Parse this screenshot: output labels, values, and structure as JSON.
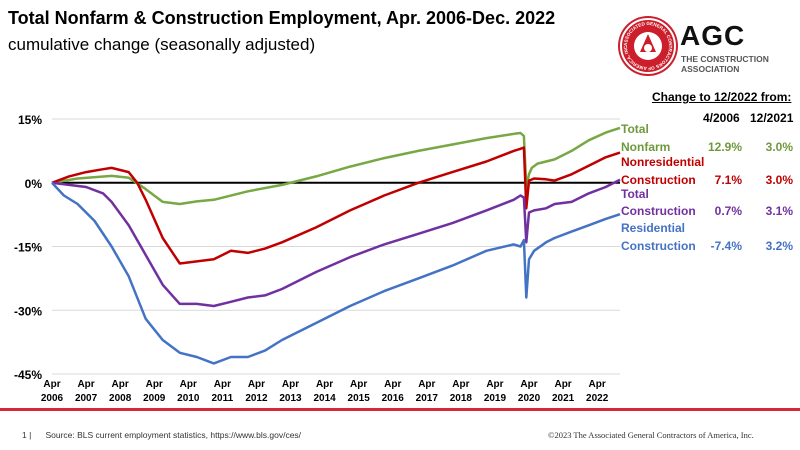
{
  "title": "Total Nonfarm & Construction Employment, Apr. 2006-Dec. 2022",
  "subtitle": "cumulative change (seasonally adjusted)",
  "logo": {
    "name": "AGC",
    "sub1": "THE CONSTRUCTION",
    "sub2": "ASSOCIATION",
    "seal_text": "ASSOCIATED GENERAL CONTRACTORS OF AMERICA, INC."
  },
  "table": {
    "header": "Change to 12/2022 from:",
    "col1": "4/2006",
    "col2": "12/2021",
    "rows": [
      {
        "label1": "Total",
        "label2": "Nonfarm",
        "v1": "12.9%",
        "v2": "3.0%",
        "color": "#6e9a3c"
      },
      {
        "label1": "Nonresidential",
        "label2": "Construction",
        "v1": "7.1%",
        "v2": "3.0%",
        "color": "#c00000"
      },
      {
        "label1": "Total",
        "label2": "Construction",
        "v1": "0.7%",
        "v2": "3.1%",
        "color": "#7030a0"
      },
      {
        "label1": "Residential",
        "label2": "Construction",
        "v1": "-7.4%",
        "v2": "3.2%",
        "color": "#4472c4"
      }
    ]
  },
  "footer": {
    "page": "1 |",
    "source": "Source: BLS current employment statistics, https://www.bls.gov/ces/",
    "copyright": "©2023 The Associated General Contractors of America, Inc."
  },
  "chart_data": {
    "type": "line",
    "ylim": [
      -45,
      15
    ],
    "yticks": [
      15,
      0,
      -15,
      -30,
      -45
    ],
    "ytick_labels": [
      "15%",
      "0%",
      "-15%",
      "-30%",
      "-45%"
    ],
    "xlim": [
      2006.25,
      2022.92
    ],
    "x_ticks": [
      {
        "year": 2006,
        "label": "2006",
        "month": "Apr"
      },
      {
        "year": 2007,
        "label": "2007",
        "month": "Apr"
      },
      {
        "year": 2008,
        "label": "2008",
        "month": "Apr"
      },
      {
        "year": 2009,
        "label": "2009",
        "month": "Apr"
      },
      {
        "year": 2010,
        "label": "2010",
        "month": "Apr"
      },
      {
        "year": 2011,
        "label": "2011",
        "month": "Apr"
      },
      {
        "year": 2012,
        "label": "2012",
        "month": "Apr"
      },
      {
        "year": 2013,
        "label": "2013",
        "month": "Apr"
      },
      {
        "year": 2014,
        "label": "2014",
        "month": "Apr"
      },
      {
        "year": 2015,
        "label": "2015",
        "month": "Apr"
      },
      {
        "year": 2016,
        "label": "2016",
        "month": "Apr"
      },
      {
        "year": 2017,
        "label": "2017",
        "month": "Apr"
      },
      {
        "year": 2018,
        "label": "2018",
        "month": "Apr"
      },
      {
        "year": 2019,
        "label": "2019",
        "month": "Apr"
      },
      {
        "year": 2020,
        "label": "2020",
        "month": "Apr"
      },
      {
        "year": 2021,
        "label": "2021",
        "month": "Apr"
      },
      {
        "year": 2022,
        "label": "2022",
        "month": "Apr"
      }
    ],
    "series": [
      {
        "name": "Total Nonfarm",
        "color": "#77a843",
        "x": [
          2006.25,
          2007.0,
          2008.0,
          2008.5,
          2009.0,
          2009.5,
          2010.0,
          2010.5,
          2011.0,
          2012.0,
          2013.0,
          2014.0,
          2015.0,
          2016.0,
          2017.0,
          2018.0,
          2019.0,
          2019.9,
          2020.0,
          2020.1,
          2020.17,
          2020.25,
          2020.33,
          2020.5,
          2020.75,
          2021.0,
          2021.5,
          2022.0,
          2022.5,
          2022.92
        ],
        "y": [
          0,
          1,
          1.6,
          1.2,
          -1.5,
          -4.5,
          -5.0,
          -4.4,
          -4.0,
          -2.0,
          -0.5,
          1.5,
          3.8,
          5.8,
          7.5,
          9.0,
          10.5,
          11.6,
          11.7,
          11.0,
          -1.0,
          2.0,
          3.5,
          4.5,
          5.0,
          5.5,
          7.5,
          10.0,
          11.8,
          12.9
        ]
      },
      {
        "name": "Nonresidential Construction",
        "color": "#c00000",
        "x": [
          2006.25,
          2006.75,
          2007.25,
          2007.75,
          2008.0,
          2008.5,
          2008.75,
          2009.0,
          2009.5,
          2010.0,
          2010.5,
          2011.0,
          2011.5,
          2012.0,
          2012.5,
          2013.0,
          2014.0,
          2015.0,
          2016.0,
          2017.0,
          2018.0,
          2019.0,
          2019.8,
          2020.0,
          2020.1,
          2020.17,
          2020.25,
          2020.4,
          2020.75,
          2021.0,
          2021.5,
          2022.0,
          2022.5,
          2022.92
        ],
        "y": [
          0,
          1.5,
          2.5,
          3.2,
          3.5,
          2.5,
          0,
          -4,
          -13,
          -19,
          -18.5,
          -18,
          -16,
          -16.5,
          -15.5,
          -14,
          -10.5,
          -6.5,
          -3,
          0,
          2.5,
          5,
          7.5,
          8.0,
          8.3,
          -6,
          0.5,
          1.0,
          0.8,
          0.5,
          2.0,
          4.0,
          6.0,
          7.1
        ]
      },
      {
        "name": "Total Construction",
        "color": "#7030a0",
        "x": [
          2006.25,
          2006.75,
          2007.25,
          2007.75,
          2008.0,
          2008.5,
          2009.0,
          2009.5,
          2010.0,
          2010.5,
          2011.0,
          2011.5,
          2012.0,
          2012.5,
          2013.0,
          2014.0,
          2015.0,
          2016.0,
          2017.0,
          2018.0,
          2019.0,
          2019.8,
          2020.0,
          2020.1,
          2020.17,
          2020.25,
          2020.4,
          2020.75,
          2021.0,
          2021.5,
          2022.0,
          2022.5,
          2022.92
        ],
        "y": [
          0,
          -0.5,
          -1,
          -2.5,
          -4.5,
          -10,
          -17,
          -24,
          -28.5,
          -28.5,
          -29,
          -28,
          -27,
          -26.5,
          -25,
          -21,
          -17.5,
          -14.5,
          -12,
          -9.5,
          -6.5,
          -4,
          -3,
          -3.5,
          -14,
          -7,
          -6.5,
          -6,
          -5,
          -4.5,
          -2.5,
          -1.0,
          0.7
        ]
      },
      {
        "name": "Residential Construction",
        "color": "#4472c4",
        "x": [
          2006.25,
          2006.6,
          2007.0,
          2007.5,
          2008.0,
          2008.5,
          2009.0,
          2009.5,
          2010.0,
          2010.5,
          2011.0,
          2011.5,
          2012.0,
          2012.5,
          2013.0,
          2014.0,
          2015.0,
          2016.0,
          2017.0,
          2018.0,
          2019.0,
          2019.8,
          2020.0,
          2020.1,
          2020.17,
          2020.25,
          2020.4,
          2020.75,
          2021.0,
          2021.5,
          2022.0,
          2022.5,
          2022.92
        ],
        "y": [
          0,
          -3,
          -5,
          -9,
          -15,
          -22,
          -32,
          -37,
          -40,
          -41,
          -42.5,
          -41,
          -41,
          -39.5,
          -37,
          -33,
          -29,
          -25.5,
          -22.5,
          -19.5,
          -16,
          -14.5,
          -15,
          -13.5,
          -27,
          -18,
          -16,
          -14,
          -13,
          -11.5,
          -10,
          -8.5,
          -7.4
        ]
      }
    ]
  }
}
